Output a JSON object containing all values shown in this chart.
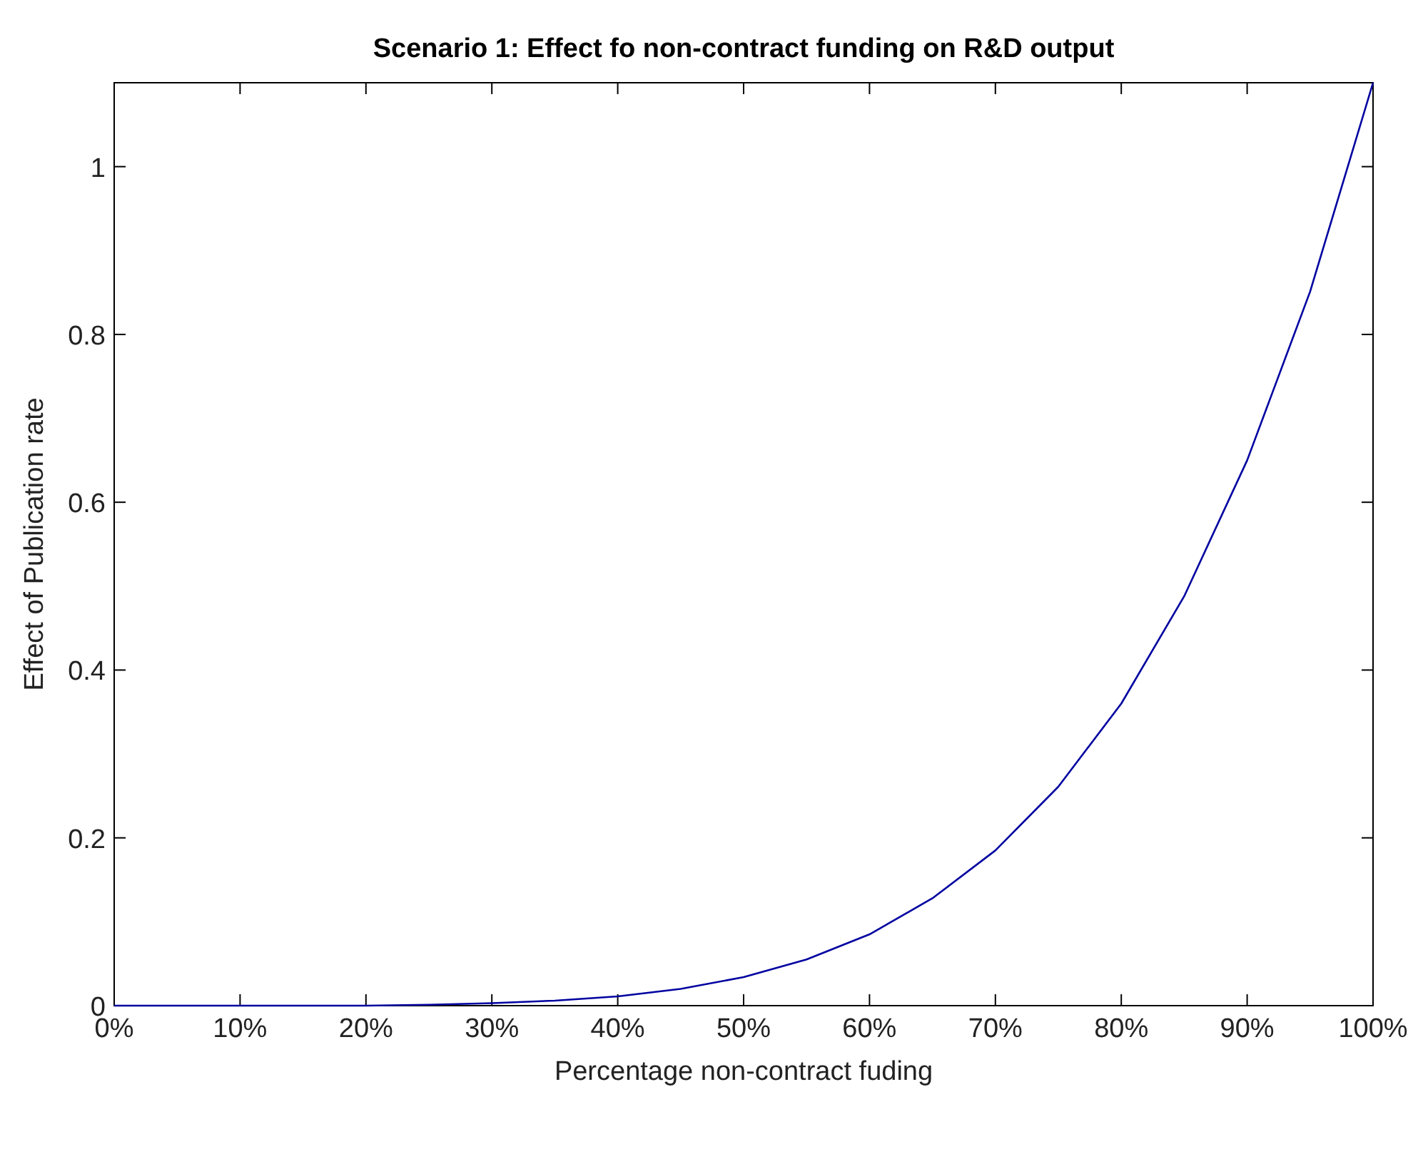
{
  "chart_data": {
    "type": "line",
    "title": "Scenario 1: Effect fo non-contract funding on R&D output",
    "xlabel": "Percentage non-contract fuding",
    "ylabel": "Effect of Publication rate",
    "x": [
      0,
      5,
      10,
      15,
      20,
      25,
      30,
      35,
      40,
      45,
      50,
      55,
      60,
      65,
      70,
      75,
      80,
      85,
      90,
      95,
      100
    ],
    "series": [
      {
        "color": "#0000a0",
        "values": [
          0,
          0,
          0,
          0,
          0,
          0.001,
          0.003,
          0.006,
          0.011,
          0.02,
          0.034,
          0.055,
          0.085,
          0.128,
          0.185,
          0.261,
          0.36,
          0.488,
          0.65,
          0.851,
          1.1
        ]
      }
    ],
    "xlim": [
      0,
      100
    ],
    "xticks": [
      {
        "value": 0,
        "label": "0%"
      },
      {
        "value": 10,
        "label": "10%"
      },
      {
        "value": 20,
        "label": "20%"
      },
      {
        "value": 30,
        "label": "30%"
      },
      {
        "value": 40,
        "label": "40%"
      },
      {
        "value": 50,
        "label": "50%"
      },
      {
        "value": 60,
        "label": "60%"
      },
      {
        "value": 70,
        "label": "70%"
      },
      {
        "value": 80,
        "label": "80%"
      },
      {
        "value": 90,
        "label": "90%"
      },
      {
        "value": 100,
        "label": "100%"
      }
    ],
    "ylim": [
      0,
      1.1
    ],
    "yticks": [
      0,
      0.2,
      0.4,
      0.6,
      0.8,
      1
    ],
    "grid": false,
    "marker": "none",
    "line_style": "solid"
  }
}
